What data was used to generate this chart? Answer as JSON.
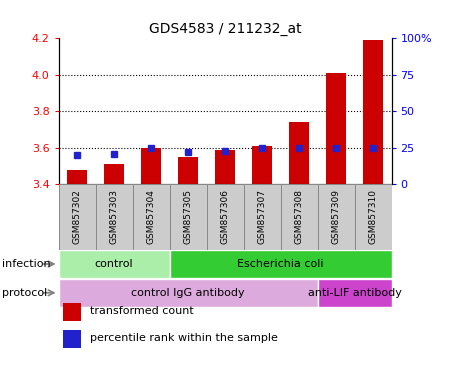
{
  "title": "GDS4583 / 211232_at",
  "samples": [
    "GSM857302",
    "GSM857303",
    "GSM857304",
    "GSM857305",
    "GSM857306",
    "GSM857307",
    "GSM857308",
    "GSM857309",
    "GSM857310"
  ],
  "transformed_count": [
    3.48,
    3.51,
    3.6,
    3.55,
    3.59,
    3.61,
    3.74,
    4.01,
    4.19
  ],
  "percentile_rank": [
    20,
    21,
    25,
    22,
    23,
    25,
    25,
    25,
    25
  ],
  "ylim_left": [
    3.4,
    4.2
  ],
  "ylim_right": [
    0,
    100
  ],
  "yticks_left": [
    3.4,
    3.6,
    3.8,
    4.0,
    4.2
  ],
  "yticks_right": [
    0,
    25,
    50,
    75,
    100
  ],
  "bar_color": "#cc0000",
  "dot_color": "#2222cc",
  "bar_baseline": 3.4,
  "infection_groups": [
    {
      "label": "control",
      "start": 0,
      "end": 3,
      "color": "#aaeeaa"
    },
    {
      "label": "Escherichia coli",
      "start": 3,
      "end": 9,
      "color": "#33cc33"
    }
  ],
  "protocol_groups": [
    {
      "label": "control IgG antibody",
      "start": 0,
      "end": 7,
      "color": "#ddaadd"
    },
    {
      "label": "anti-LIF antibody",
      "start": 7,
      "end": 9,
      "color": "#cc44cc"
    }
  ],
  "legend_items": [
    {
      "label": "transformed count",
      "color": "#cc0000"
    },
    {
      "label": "percentile rank within the sample",
      "color": "#2222cc"
    }
  ],
  "infection_label": "infection",
  "protocol_label": "protocol",
  "sample_box_color": "#cccccc",
  "sample_box_border": "#888888"
}
